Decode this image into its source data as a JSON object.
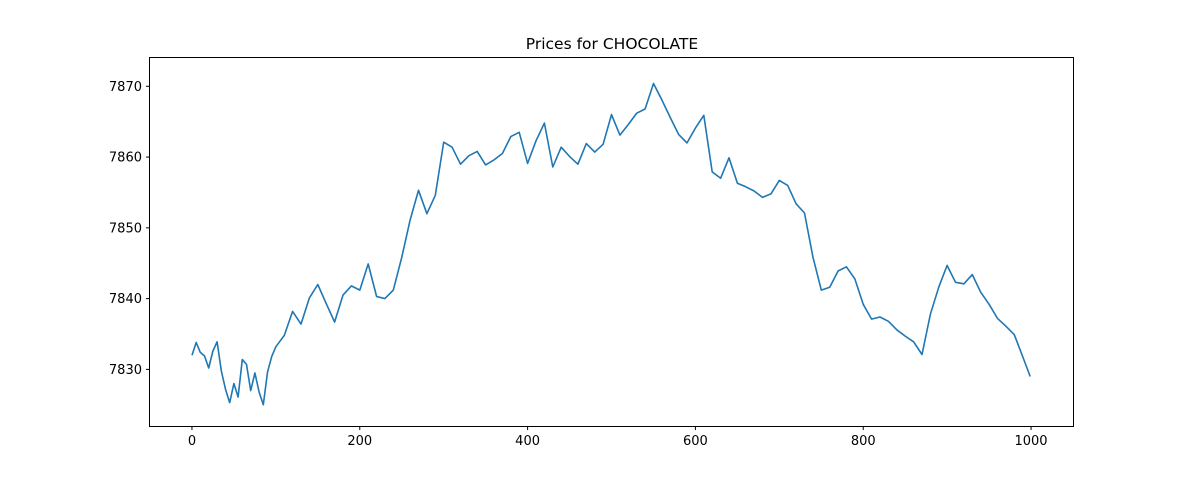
{
  "chart_data": {
    "type": "line",
    "title": "Prices for CHOCOLATE",
    "xlabel": "",
    "ylabel": "",
    "xlim": [
      -50,
      1050
    ],
    "ylim": [
      7822,
      7874
    ],
    "xticks": [
      0,
      200,
      400,
      600,
      800,
      1000
    ],
    "yticks": [
      7830,
      7840,
      7850,
      7860,
      7870
    ],
    "grid": false,
    "legend": "none",
    "line_color": "#1f77b4",
    "series": [
      {
        "x": [
          0,
          5,
          10,
          15,
          20,
          25,
          30,
          35,
          40,
          45,
          50,
          55,
          60,
          65,
          70,
          75,
          80,
          85,
          90,
          95,
          100,
          110,
          120,
          130,
          140,
          150,
          160,
          170,
          180,
          190,
          200,
          210,
          220,
          230,
          240,
          250,
          260,
          270,
          280,
          290,
          300,
          310,
          320,
          330,
          340,
          350,
          360,
          370,
          380,
          390,
          400,
          410,
          420,
          430,
          440,
          450,
          460,
          470,
          480,
          490,
          500,
          510,
          520,
          530,
          540,
          550,
          560,
          570,
          580,
          590,
          600,
          610,
          620,
          630,
          640,
          650,
          660,
          670,
          680,
          690,
          700,
          710,
          720,
          730,
          740,
          750,
          760,
          770,
          780,
          790,
          800,
          810,
          820,
          830,
          840,
          850,
          860,
          870,
          880,
          890,
          900,
          910,
          920,
          930,
          940,
          950,
          960,
          970,
          980,
          990,
          999
        ],
        "y": [
          7832.0,
          7833.8,
          7832.4,
          7831.9,
          7830.2,
          7832.6,
          7833.9,
          7829.8,
          7827.2,
          7825.3,
          7828.0,
          7826.1,
          7831.4,
          7830.7,
          7827.0,
          7829.5,
          7826.8,
          7825.0,
          7829.6,
          7831.8,
          7833.2,
          7834.8,
          7838.2,
          7836.4,
          7840.1,
          7842.0,
          7839.3,
          7836.7,
          7840.5,
          7841.8,
          7841.2,
          7844.9,
          7840.3,
          7840.0,
          7841.2,
          7845.8,
          7851.1,
          7855.3,
          7852.0,
          7854.6,
          7862.1,
          7861.4,
          7859.0,
          7860.2,
          7860.8,
          7858.9,
          7859.6,
          7860.5,
          7862.9,
          7863.5,
          7859.1,
          7862.3,
          7864.8,
          7858.6,
          7861.4,
          7860.1,
          7859.0,
          7861.9,
          7860.7,
          7861.8,
          7866.0,
          7863.1,
          7864.6,
          7866.2,
          7866.8,
          7870.4,
          7868.1,
          7865.6,
          7863.2,
          7862.0,
          7864.1,
          7865.9,
          7857.9,
          7857.0,
          7859.9,
          7856.3,
          7855.8,
          7855.2,
          7854.3,
          7854.8,
          7856.7,
          7856.0,
          7853.4,
          7852.1,
          7845.9,
          7841.2,
          7841.6,
          7843.9,
          7844.5,
          7842.8,
          7839.2,
          7837.1,
          7837.4,
          7836.8,
          7835.6,
          7834.7,
          7833.9,
          7832.1,
          7837.8,
          7841.6,
          7844.7,
          7842.3,
          7842.1,
          7843.4,
          7840.9,
          7839.2,
          7837.2,
          7836.1,
          7834.9,
          7831.8,
          7829.0
        ]
      }
    ]
  }
}
